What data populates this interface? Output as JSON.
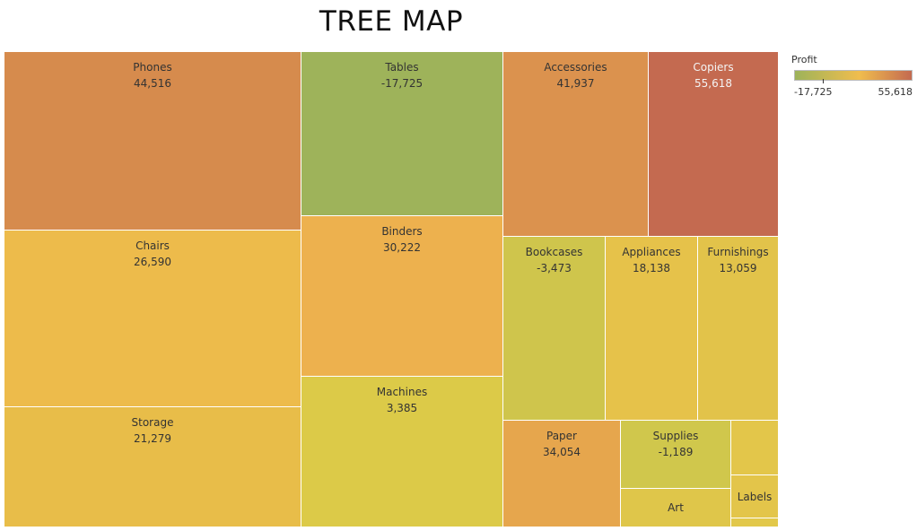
{
  "chart_data": {
    "type": "treemap",
    "title": "TREE MAP",
    "color_metric": "Profit",
    "color_range": [
      -17725,
      55618
    ],
    "color_scale": [
      "#9db35a",
      "#f0bd4e",
      "#c46a50"
    ],
    "items": [
      {
        "name": "Phones",
        "value": 44516,
        "value_label": "44,516",
        "color": "#d68b4d"
      },
      {
        "name": "Chairs",
        "value": 26590,
        "value_label": "26,590",
        "color": "#edbb4b"
      },
      {
        "name": "Storage",
        "value": 21279,
        "value_label": "21,279",
        "color": "#e8bd49"
      },
      {
        "name": "Tables",
        "value": -17725,
        "value_label": "-17,725",
        "color": "#9eb35a"
      },
      {
        "name": "Binders",
        "value": 30222,
        "value_label": "30,222",
        "color": "#edb14e"
      },
      {
        "name": "Machines",
        "value": 3385,
        "value_label": "3,385",
        "color": "#dcca48"
      },
      {
        "name": "Accessories",
        "value": 41937,
        "value_label": "41,937",
        "color": "#db924e"
      },
      {
        "name": "Copiers",
        "value": 55618,
        "value_label": "55,618",
        "color": "#c46a50"
      },
      {
        "name": "Bookcases",
        "value": -3473,
        "value_label": "-3,473",
        "color": "#cfc54c"
      },
      {
        "name": "Appliances",
        "value": 18138,
        "value_label": "18,138",
        "color": "#e6c24a"
      },
      {
        "name": "Furnishings",
        "value": 13059,
        "value_label": "13,059",
        "color": "#e2c34a"
      },
      {
        "name": "Paper",
        "value": 34054,
        "value_label": "34,054",
        "color": "#e6a64d"
      },
      {
        "name": "Supplies",
        "value": -1189,
        "value_label": "-1,189",
        "color": "#d0c74c"
      },
      {
        "name": "Art",
        "value_label": "",
        "color": "#dfc64a"
      },
      {
        "name": "Labels",
        "value_label": "",
        "color": "#e3c54a"
      },
      {
        "name": "",
        "value_label": "",
        "color": "#e2c84a"
      },
      {
        "name": "",
        "value_label": "",
        "color": "#e3c64a"
      }
    ]
  },
  "legend": {
    "title": "Profit",
    "min_label": "-17,725",
    "max_label": "55,618"
  }
}
